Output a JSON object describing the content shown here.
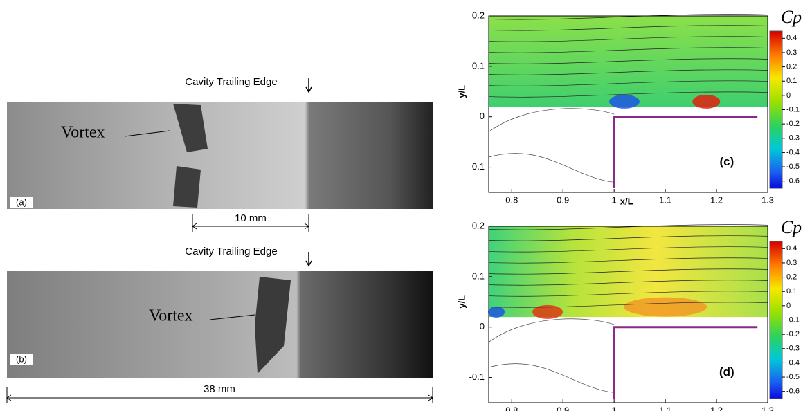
{
  "photos": [
    {
      "label": "(a)",
      "vortex": "Vortex",
      "edge_label": "Cavity Trailing Edge",
      "scale_label": "10 mm"
    },
    {
      "label": "(b)",
      "vortex": "Vortex",
      "edge_label": "Cavity Trailing Edge",
      "scale_label": "38 mm"
    }
  ],
  "plots": [
    {
      "label": "(c)",
      "xlabel": "x/L",
      "ylabel": "y/L",
      "colorbar_title": "Cp"
    },
    {
      "label": "(d)",
      "ylabel": "y/L",
      "colorbar_title": "Cp"
    }
  ],
  "xlim": [
    0.755,
    1.3
  ],
  "xticks": [
    0.8,
    0.9,
    1,
    1.1,
    1.2,
    1.3
  ],
  "ylim": [
    -0.15,
    0.2
  ],
  "yticks": [
    -0.1,
    0,
    0.1,
    0.2
  ],
  "colorbar_lim": [
    -0.65,
    0.45
  ],
  "colorbar_ticks": [
    0.4,
    0.3,
    0.2,
    0.1,
    0,
    -0.1,
    -0.2,
    -0.3,
    -0.4,
    -0.5,
    -0.6
  ]
}
